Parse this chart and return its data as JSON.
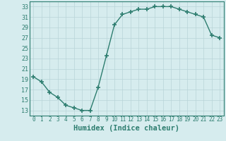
{
  "x": [
    0,
    1,
    2,
    3,
    4,
    5,
    6,
    7,
    8,
    9,
    10,
    11,
    12,
    13,
    14,
    15,
    16,
    17,
    18,
    19,
    20,
    21,
    22,
    23
  ],
  "y": [
    19.5,
    18.5,
    16.5,
    15.5,
    14.0,
    13.5,
    13.0,
    13.0,
    17.5,
    23.5,
    29.5,
    31.5,
    32.0,
    32.5,
    32.5,
    33.0,
    33.0,
    33.0,
    32.5,
    32.0,
    31.5,
    31.0,
    27.5,
    27.0
  ],
  "line_color": "#2d7d6f",
  "marker": "+",
  "marker_size": 4,
  "marker_linewidth": 1.2,
  "linewidth": 1.0,
  "xlabel": "Humidex (Indice chaleur)",
  "xlim": [
    -0.5,
    23.5
  ],
  "ylim": [
    12,
    34
  ],
  "yticks": [
    13,
    15,
    17,
    19,
    21,
    23,
    25,
    27,
    29,
    31,
    33
  ],
  "xticks": [
    0,
    1,
    2,
    3,
    4,
    5,
    6,
    7,
    8,
    9,
    10,
    11,
    12,
    13,
    14,
    15,
    16,
    17,
    18,
    19,
    20,
    21,
    22,
    23
  ],
  "bg_color": "#d6ecee",
  "grid_color": "#b8d4d8",
  "tick_color": "#2d7d6f",
  "label_color": "#2d7d6f",
  "xlabel_fontsize": 7.5,
  "ytick_fontsize": 6,
  "xtick_fontsize": 5.5
}
